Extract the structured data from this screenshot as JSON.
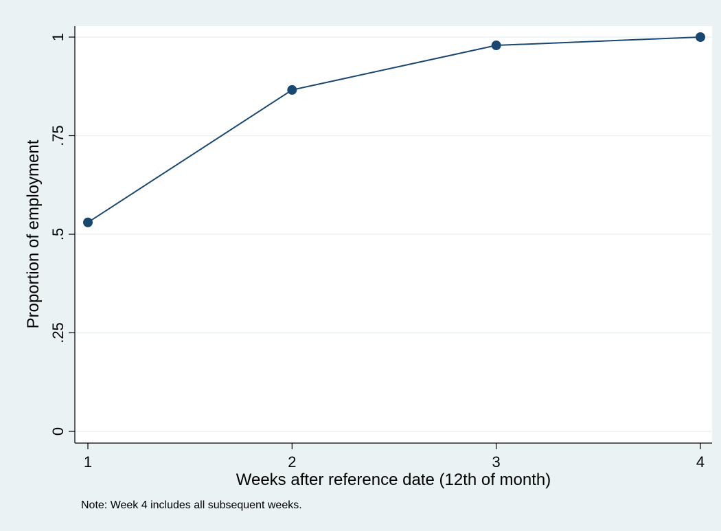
{
  "chart_data": {
    "type": "line",
    "title": "",
    "xlabel": "Weeks after reference date (12th of month)",
    "ylabel": "Proportion of employment",
    "note": "Note: Week 4 includes all subsequent weeks.",
    "x": [
      1,
      2,
      3,
      4
    ],
    "xticks": [
      {
        "value": 1,
        "label": "1"
      },
      {
        "value": 2,
        "label": "2"
      },
      {
        "value": 3,
        "label": "3"
      },
      {
        "value": 4,
        "label": "4"
      }
    ],
    "yticks": [
      {
        "value": 0,
        "label": "0"
      },
      {
        "value": 0.25,
        "label": ".25"
      },
      {
        "value": 0.5,
        "label": ".5"
      },
      {
        "value": 0.75,
        "label": ".75"
      },
      {
        "value": 1,
        "label": "1"
      }
    ],
    "xlim": [
      1,
      4
    ],
    "ylim": [
      0,
      1
    ],
    "grid": true,
    "series": [
      {
        "values": [
          0.53,
          0.866,
          0.979,
          1.0
        ],
        "color": "#1a476f"
      }
    ],
    "colors": {
      "outer_background": "#eaf2f3",
      "plot_background": "#ffffff",
      "grid": "#eaf2f3",
      "axis": "#000000"
    }
  }
}
